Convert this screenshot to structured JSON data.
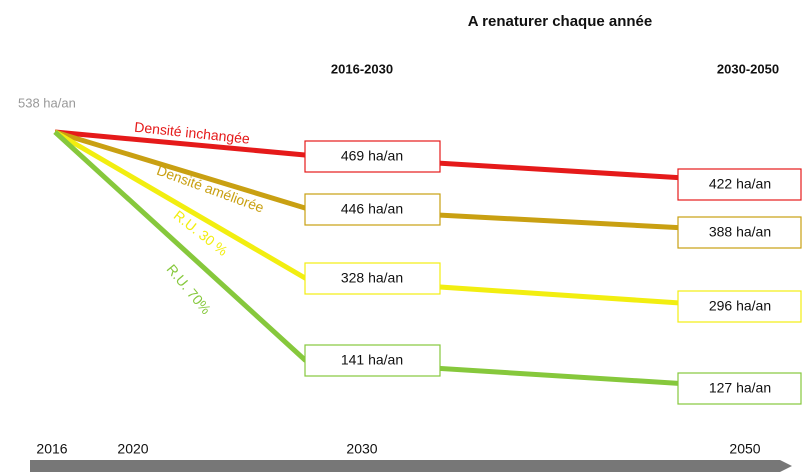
{
  "title": "A renaturer chaque année",
  "periods": [
    "2016-2030",
    "2030-2050"
  ],
  "start_label": "538 ha/an",
  "series": [
    {
      "name": "Densité inchangée",
      "color": "#e51a1a",
      "labels": [
        "469 ha/an",
        "422 ha/an"
      ]
    },
    {
      "name": "Densité améliorée",
      "color": "#c9a012",
      "labels": [
        "446 ha/an",
        "388 ha/an"
      ]
    },
    {
      "name": "R.U. 30 %",
      "color": "#f2ee10",
      "labels": [
        "328 ha/an",
        "296 ha/an"
      ]
    },
    {
      "name": "R.U. 70%",
      "color": "#86c83c",
      "labels": [
        "141 ha/an",
        "127 ha/an"
      ]
    }
  ],
  "timeline": [
    "2016",
    "2020",
    "2030",
    "2050"
  ]
}
